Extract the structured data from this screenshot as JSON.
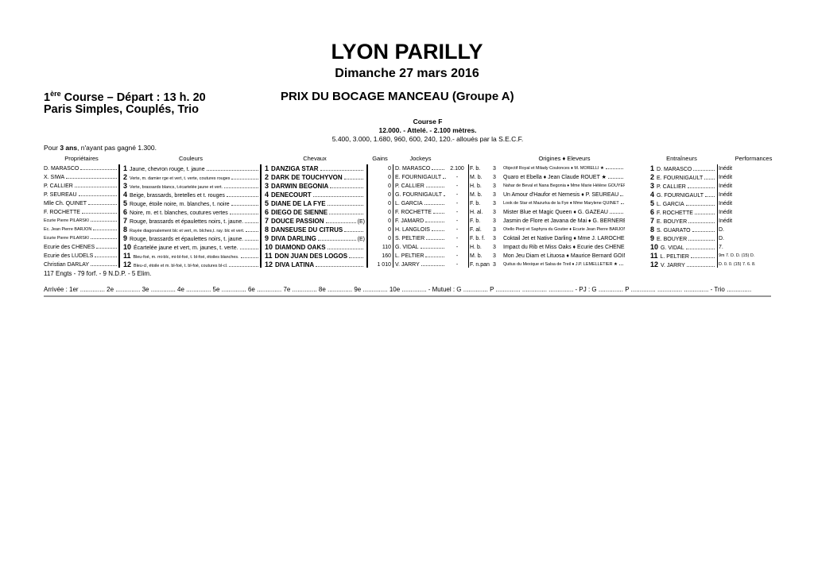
{
  "header": {
    "venue": "LYON PARILLY",
    "date": "Dimanche 27 mars 2016",
    "course_number": "1",
    "course_sup": "ère",
    "course_text": " Course  – Départ : 13 h. 20",
    "bets": "Paris Simples, Couplés, Trio",
    "prix": "PRIX DU BOCAGE MANCEAU (Groupe A)",
    "course_type": "Course F",
    "distance": "12.000. - Attelé. - 2.100 mètres.",
    "allocations": "5.400, 3.000, 1.680, 960, 600, 240, 120.- alloués par la S.E.C.F.",
    "condition_pre": "Pour ",
    "condition_bold": "3 ans",
    "condition_post": ", n'ayant pas gagné 1.300."
  },
  "columns": {
    "owners": "Propriétaires",
    "colors": "Couleurs",
    "horses": "Chevaux",
    "gains": "Gains",
    "jockeys": "Jockeys",
    "origins": "Origines ♦ Eleveurs",
    "trainers": "Entraîneurs",
    "performances": "Performances"
  },
  "rows": [
    {
      "owner": "D. MARASCO",
      "num": "1",
      "colors": "Jaune, chevron rouge, t. jaune",
      "horse": "DANZIGA STAR",
      "e": "",
      "gains": "0",
      "jockey": "D. MARASCO",
      "dist": "2.100",
      "sex": "F. b.",
      "age": "3",
      "origin": "Objectif Royal et Milady Coulonces ♦  M. MORELLI ★",
      "trainer": "D. MARASCO",
      "perf": "Inédit"
    },
    {
      "owner": "X. SIWA",
      "num": "2",
      "colors": "Verte, m. damier rge et vert, t. verte, coutures rouges",
      "horse": "DARK DE TOUCHYVON",
      "e": "",
      "gains": "0",
      "jockey": "E. FOURNIGAULT",
      "dist": "-",
      "sex": "M. b.",
      "age": "3",
      "origin": "Quaro et Ebella ♦  Jean Claude ROUET ★",
      "trainer": "E. FOURNIGAULT",
      "perf": "Inédit"
    },
    {
      "owner": "P. CALLIER",
      "num": "3",
      "colors": "Verte, brassards blancs, t.écartelée jaune et vert.",
      "horse": "DARWIN BEGONIA",
      "e": "",
      "gains": "0",
      "jockey": "P. CALLIER",
      "dist": "-",
      "sex": "H. b.",
      "age": "3",
      "origin": "Nahar de Beval et Nana Begonia ♦ Mme  Marie Hélène GOUYER",
      "trainer": "P. CALLIER",
      "perf": "Inédit"
    },
    {
      "owner": "P. SEUREAU",
      "num": "4",
      "colors": "Beige, brassards, bretelles et t. rouges",
      "horse": "DENECOURT",
      "e": "",
      "gains": "0",
      "jockey": "G. FOURNIGAULT",
      "dist": "-",
      "sex": "M. b.",
      "age": "3",
      "origin": "Un Amour d'Haufor et Nemesis ♦  P. SEUREAU",
      "trainer": "G. FOURNIGAULT",
      "perf": "Inédit"
    },
    {
      "owner": "Mlle Ch. QUINET",
      "num": "5",
      "colors": "Rouge, étoile noire, m. blanches, t. noire",
      "horse": "DIANE DE LA FYE",
      "e": "",
      "gains": "0",
      "jockey": "L. GARCIA",
      "dist": "-",
      "sex": "F. b.",
      "age": "3",
      "origin": "Look de Star et Mazurka de la Fye ♦ Mme  Marylene QUINET",
      "trainer": "L. GARCIA",
      "perf": "Inédit"
    },
    {
      "owner": "F. ROCHETTE",
      "num": "6",
      "colors": "Noire, m. et t. blanches, coutures vertes",
      "horse": "DIEGO DE SIENNE",
      "e": "",
      "gains": "0",
      "jockey": "F. ROCHETTE",
      "dist": "-",
      "sex": "H. al.",
      "age": "3",
      "origin": "Mister Blue et Magic Queen ♦  G. GAZEAU",
      "trainer": "F. ROCHETTE",
      "perf": "Inédit"
    },
    {
      "owner": "Ecurie Pierre PILARSKI",
      "num": "7",
      "colors": "Rouge, brassards et épaulettes noirs, t. jaune.",
      "horse": "DOUCE PASSION",
      "e": "(E)",
      "gains": "0",
      "jockey": "F. JAMARD",
      "dist": "-",
      "sex": "F. b.",
      "age": "3",
      "origin": "Jasmin de Flore et Javana de Mai ♦  G. BERNEREAU",
      "trainer": "E. BOUYER",
      "perf": "Inédit"
    },
    {
      "owner": "Ec. Jean Pierre BARJON",
      "num": "8",
      "colors": "Rayée diagonalement blc et vert, m. blches,t. ray. blc et vert.",
      "horse": "DANSEUSE DU CITRUS",
      "e": "",
      "gains": "0",
      "jockey": "H. LANGLOIS",
      "dist": "-",
      "sex": "F. al.",
      "age": "3",
      "origin": "Otello Pierji et Saphyra du Goutier ♦  Ecurie Jean Pierre BARJON",
      "trainer": "S. GUARATO",
      "perf": "D."
    },
    {
      "owner": "Ecurie Pierre PILARSKI",
      "num": "9",
      "colors": "Rouge, brassards et épaulettes noirs, t. jaune.",
      "horse": "DIVA DARLING",
      "e": "(E)",
      "gains": "0",
      "jockey": "S. PELTIER",
      "dist": "-",
      "sex": "F. b. f.",
      "age": "3",
      "origin": "Coktail Jet et Native Darling ♦ Mme  J. LAROCHE",
      "trainer": "E. BOUYER",
      "perf": "D."
    },
    {
      "owner": "Ecurie des CHENES",
      "num": "10",
      "colors": "Écartelée jaune et vert, m. jaunes, t. verte.",
      "horse": "DIAMOND OAKS",
      "e": "",
      "gains": "110",
      "jockey": "G. VIDAL",
      "dist": "-",
      "sex": "H. b.",
      "age": "3",
      "origin": "Impact du Rib et Miss Oaks ♦  Ecurie des CHENES",
      "trainer": "G. VIDAL",
      "perf": "7."
    },
    {
      "owner": "Ecurie des LUDELS",
      "num": "11",
      "colors": "Bleu-foé, m. mi-blc, mi-bl-foé, t. bl-foé, étoiles blanches.",
      "horse": "DON JUAN DES LOGOS",
      "e": "",
      "gains": "160",
      "jockey": "L. PELTIER",
      "dist": "-",
      "sex": "M. b.",
      "age": "3",
      "origin": "Mon Jeu Diam et Lituosa ♦  Maurice Bernard GOIN",
      "trainer": "L. PELTIER",
      "perf": "9m 7. D. D. (15) D."
    },
    {
      "owner": "Christian DARLAY",
      "num": "12",
      "colors": "Bleu-cl, étoile et m. bl-foé, t. bl-foé, coutures bl-cl.",
      "horse": "DIVA LATINA",
      "e": "",
      "gains": "1 010",
      "jockey": "V. JARRY",
      "dist": "-",
      "sex": "F. n.pan",
      "age": "3",
      "origin": "Quitus du Mexique et Salsa de Treil ♦  J.P. LEMELLETIER ★",
      "trainer": "V. JARRY",
      "perf": "D. 0. 0. (15) 7. 6. 8."
    }
  ],
  "footer": {
    "engagements": "117 Engts - 79 forf. - 9 N.D.P. - 5 Elim.",
    "arrivee": "Arrivée : 1er .............. 2e .............. 3e .............. 4e .............. 5e .............. 6e .............. 7e .............. 8e .............. 9e .............. 10e .............. - Mutuel : G .............. P .............. .............. .............. - PJ : G .............. P .............. .............. .............. - Trio .............."
  }
}
